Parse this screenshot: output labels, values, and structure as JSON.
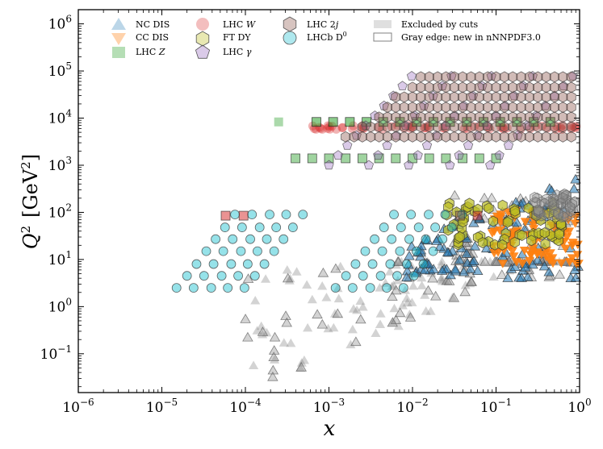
{
  "chart_data": {
    "type": "scatter",
    "title": "",
    "xlabel": "x",
    "ylabel_parts": [
      "Q",
      "2",
      "[GeV",
      "2",
      "]"
    ],
    "xscale": "log",
    "yscale": "log",
    "xlim": [
      1e-06,
      1
    ],
    "ylim": [
      0.015,
      2000000
    ],
    "x_ticks": [
      {
        "value": 1e-06,
        "base": "10",
        "exp": "−6"
      },
      {
        "value": 1e-05,
        "base": "10",
        "exp": "−5"
      },
      {
        "value": 0.0001,
        "base": "10",
        "exp": "−4"
      },
      {
        "value": 0.001,
        "base": "10",
        "exp": "−3"
      },
      {
        "value": 0.01,
        "base": "10",
        "exp": "−2"
      },
      {
        "value": 0.1,
        "base": "10",
        "exp": "−1"
      },
      {
        "value": 1,
        "base": "10",
        "exp": "0"
      }
    ],
    "y_ticks": [
      {
        "value": 0.1,
        "base": "10",
        "exp": "−1"
      },
      {
        "value": 1,
        "base": "10",
        "exp": "0"
      },
      {
        "value": 10,
        "base": "10",
        "exp": "1"
      },
      {
        "value": 100,
        "base": "10",
        "exp": "2"
      },
      {
        "value": 1000,
        "base": "10",
        "exp": "3"
      },
      {
        "value": 10000,
        "base": "10",
        "exp": "4"
      },
      {
        "value": 100000,
        "base": "10",
        "exp": "5"
      },
      {
        "value": 1000000,
        "base": "10",
        "exp": "6"
      }
    ],
    "legend_position": "top",
    "series": [
      {
        "name": "NC DIS",
        "marker": "triangle-up",
        "color": "#1f77b4"
      },
      {
        "name": "CC DIS",
        "marker": "triangle-down",
        "color": "#ff7f0e"
      },
      {
        "name": "LHC Z",
        "marker": "square",
        "color": "#2ca02c"
      },
      {
        "name": "LHC W",
        "marker": "circle",
        "color": "#d62728"
      },
      {
        "name": "FT DY",
        "marker": "hexagon",
        "color": "#bcbd22"
      },
      {
        "name": "LHC γ",
        "marker": "pentagon",
        "color": "#9467bd"
      },
      {
        "name": "LHC 2j",
        "marker": "hexagon",
        "color": "#8c564b"
      },
      {
        "name": "LHCb D0",
        "marker": "circle",
        "color": "#17becf"
      },
      {
        "name": "Excluded by cuts",
        "marker": "patch-filled",
        "color": "#808080"
      },
      {
        "name": "Gray edge: new in nNNPDF3.0",
        "marker": "patch-edge",
        "color": "#808080"
      }
    ],
    "legend_labels": {
      "nc": "NC DIS",
      "cc": "CC DIS",
      "z": "LHC ",
      "z_it": "Z",
      "w": "LHC ",
      "w_it": "W",
      "fdy": "FT DY",
      "gam": "LHC ",
      "gam_it": "γ",
      "dj": "LHC 2",
      "dj_it": "j",
      "d0": "LHCb D",
      "d0_sup": "0",
      "excl": "Excluded by cuts",
      "edge": "Gray edge: new in nNNPDF3.0"
    },
    "colors": {
      "nc": "#1f77b4",
      "cc": "#ff7f0e",
      "z": "#2ca02c",
      "w": "#d62728",
      "fdy": "#bcbd22",
      "gam": "#9467bd",
      "dj": "#8c564b",
      "d0": "#17becf",
      "excl": "#808080"
    }
  }
}
